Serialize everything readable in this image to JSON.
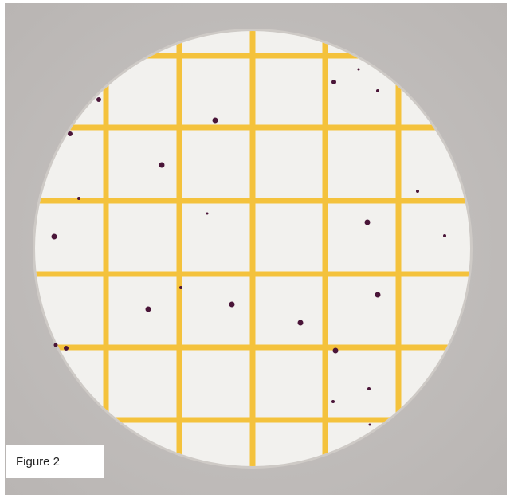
{
  "caption": "Figure 2"
}
